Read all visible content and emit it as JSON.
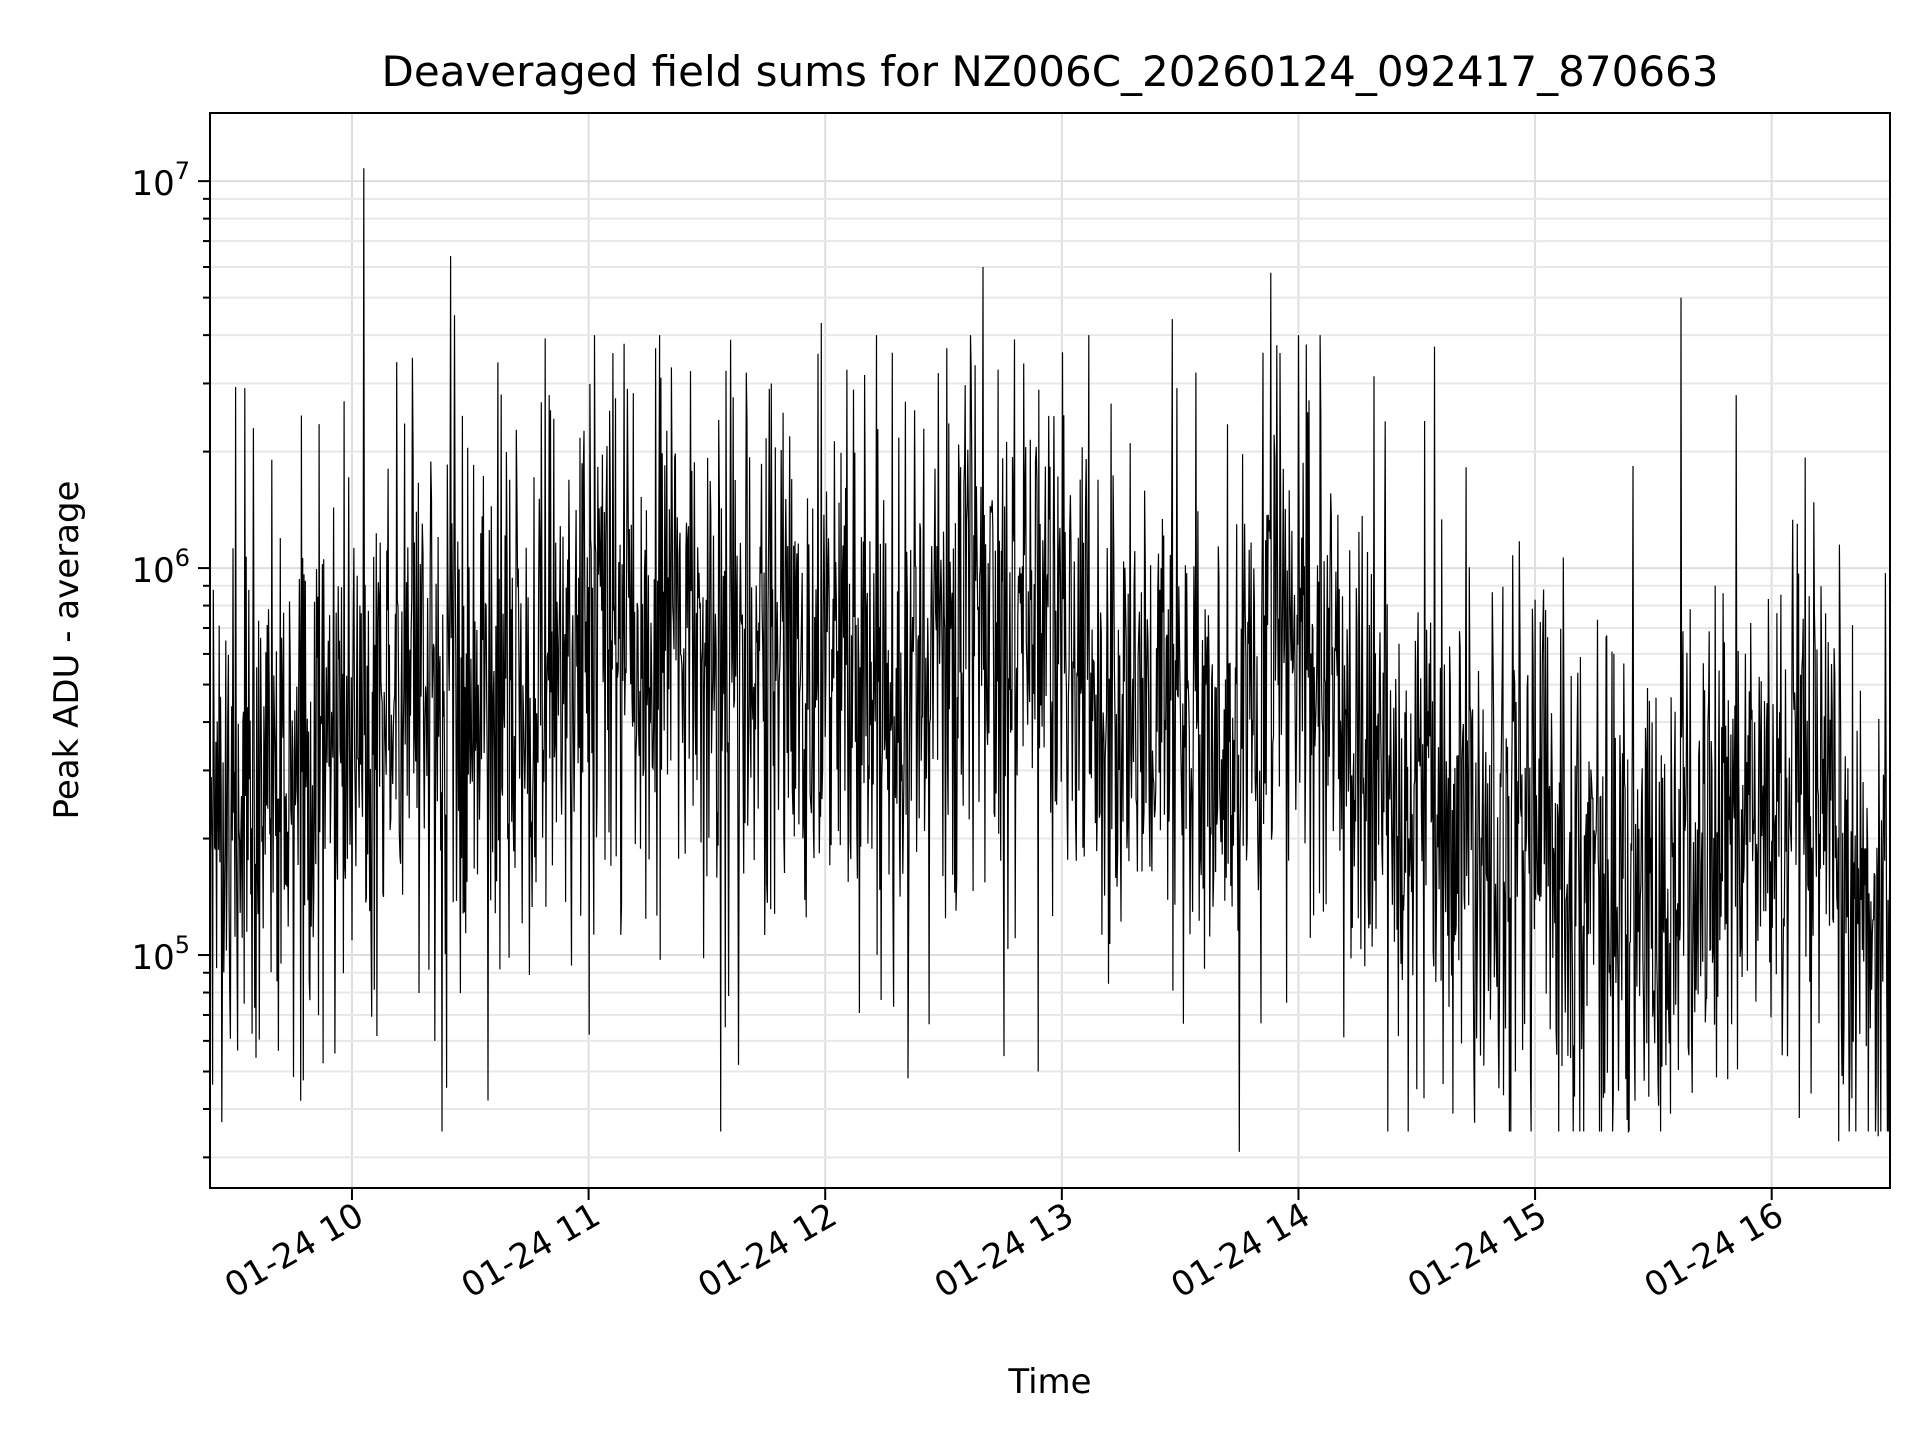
{
  "chart_data": {
    "type": "line",
    "title": "Deaveraged field sums for NZ006C_20260124_092417_870663",
    "xlabel": "Time",
    "ylabel": "Peak ADU - average",
    "xscale": "time",
    "yscale": "log",
    "xlim": [
      "2026-01-24T09:24:00",
      "2026-01-24T16:30:00"
    ],
    "ylim": [
      25000,
      15000000
    ],
    "grid": true,
    "legend": "none",
    "colors": {
      "series": "#000000",
      "grid": "#dedede",
      "frame": "#000000"
    },
    "x_ticks": [
      {
        "t": "2026-01-24T10:00:00",
        "label": "01-24 10"
      },
      {
        "t": "2026-01-24T11:00:00",
        "label": "01-24 11"
      },
      {
        "t": "2026-01-24T12:00:00",
        "label": "01-24 12"
      },
      {
        "t": "2026-01-24T13:00:00",
        "label": "01-24 13"
      },
      {
        "t": "2026-01-24T14:00:00",
        "label": "01-24 14"
      },
      {
        "t": "2026-01-24T15:00:00",
        "label": "01-24 15"
      },
      {
        "t": "2026-01-24T16:00:00",
        "label": "01-24 16"
      }
    ],
    "y_ticks": [
      {
        "value": 100000,
        "base": "10",
        "exp": "5"
      },
      {
        "value": 1000000,
        "base": "10",
        "exp": "6"
      },
      {
        "value": 10000000,
        "base": "10",
        "exp": "7"
      }
    ],
    "series": [
      {
        "sample_interval_s": 10,
        "baseline": [
          [
            "2026-01-24T09:24:00",
            240000
          ],
          [
            "2026-01-24T09:50:00",
            300000
          ],
          [
            "2026-01-24T10:10:00",
            450000
          ],
          [
            "2026-01-24T10:30:00",
            400000
          ],
          [
            "2026-01-24T10:45:00",
            480000
          ],
          [
            "2026-01-24T11:00:00",
            620000
          ],
          [
            "2026-01-24T11:20:00",
            650000
          ],
          [
            "2026-01-24T11:40:00",
            480000
          ],
          [
            "2026-01-24T12:00:00",
            600000
          ],
          [
            "2026-01-24T12:20:00",
            500000
          ],
          [
            "2026-01-24T12:40:00",
            750000
          ],
          [
            "2026-01-24T12:55:00",
            800000
          ],
          [
            "2026-01-24T13:10:00",
            450000
          ],
          [
            "2026-01-24T13:30:00",
            420000
          ],
          [
            "2026-01-24T13:40:00",
            250000
          ],
          [
            "2026-01-24T13:55:00",
            650000
          ],
          [
            "2026-01-24T14:05:00",
            500000
          ],
          [
            "2026-01-24T14:20:00",
            280000
          ],
          [
            "2026-01-24T14:40:00",
            250000
          ],
          [
            "2026-01-24T15:00:00",
            220000
          ],
          [
            "2026-01-24T15:25:00",
            120000
          ],
          [
            "2026-01-24T15:35:00",
            130000
          ],
          [
            "2026-01-24T15:50:00",
            220000
          ],
          [
            "2026-01-24T16:10:00",
            220000
          ],
          [
            "2026-01-24T16:22:00",
            120000
          ],
          [
            "2026-01-24T16:30:00",
            160000
          ]
        ],
        "peaks": [
          [
            "2026-01-24T09:28:00",
            650000
          ],
          [
            "2026-01-24T09:35:00",
            2300000
          ],
          [
            "2026-01-24T09:58:00",
            2700000
          ],
          [
            "2026-01-24T10:03:00",
            10800000
          ],
          [
            "2026-01-24T10:25:00",
            6400000
          ],
          [
            "2026-01-24T10:26:00",
            4500000
          ],
          [
            "2026-01-24T10:37:00",
            3400000
          ],
          [
            "2026-01-24T10:50:00",
            2800000
          ],
          [
            "2026-01-24T11:09:00",
            3800000
          ],
          [
            "2026-01-24T11:17:00",
            3700000
          ],
          [
            "2026-01-24T11:21:00",
            3300000
          ],
          [
            "2026-01-24T11:40:00",
            3200000
          ],
          [
            "2026-01-24T11:59:00",
            4300000
          ],
          [
            "2026-01-24T12:17:00",
            3600000
          ],
          [
            "2026-01-24T12:40:00",
            6000000
          ],
          [
            "2026-01-24T12:48:00",
            3900000
          ],
          [
            "2026-01-24T13:28:00",
            4400000
          ],
          [
            "2026-01-24T13:34:00",
            3200000
          ],
          [
            "2026-01-24T13:51:00",
            3600000
          ],
          [
            "2026-01-24T13:53:00",
            5800000
          ],
          [
            "2026-01-24T14:32:00",
            2400000
          ],
          [
            "2026-01-24T15:37:00",
            5000000
          ],
          [
            "2026-01-24T15:51:00",
            2800000
          ]
        ],
        "troughs": [
          [
            "2026-01-24T09:27:00",
            37000
          ],
          [
            "2026-01-24T09:47:00",
            42000
          ],
          [
            "2026-01-24T10:21:00",
            60000
          ],
          [
            "2026-01-24T11:38:00",
            52000
          ],
          [
            "2026-01-24T12:21:00",
            48000
          ],
          [
            "2026-01-24T12:54:00",
            50000
          ],
          [
            "2026-01-24T13:45:00",
            31000
          ],
          [
            "2026-01-24T14:30:00",
            45000
          ],
          [
            "2026-01-24T14:55:00",
            50000
          ],
          [
            "2026-01-24T16:17:00",
            33000
          ],
          [
            "2026-01-24T16:27:00",
            34000
          ]
        ]
      }
    ]
  }
}
